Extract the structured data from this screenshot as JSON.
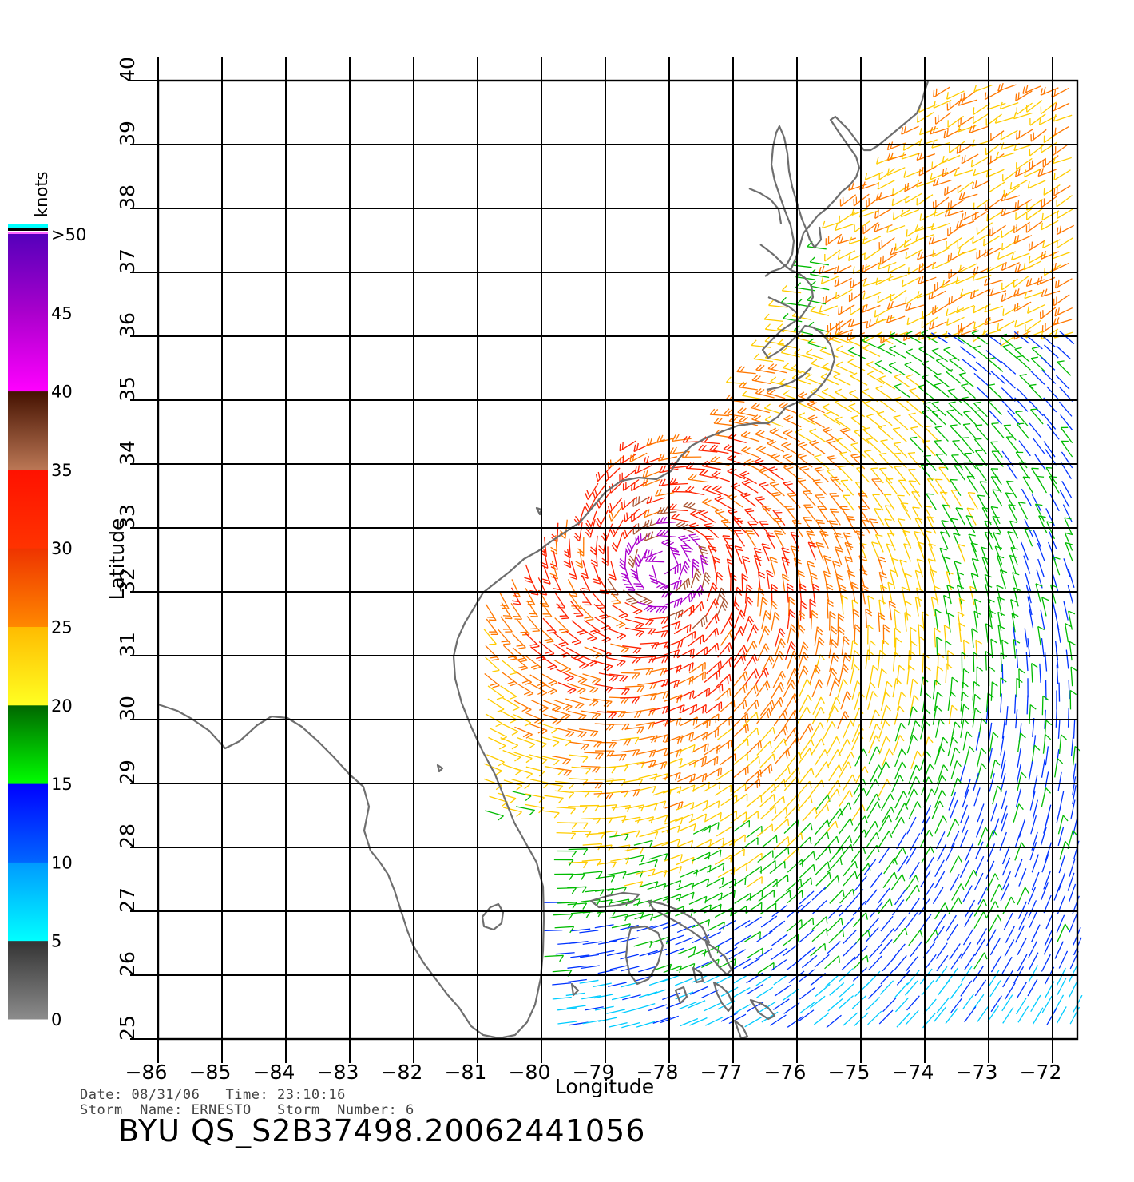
{
  "map": {
    "x_ticks": [
      "−86",
      "−85",
      "−84",
      "−83",
      "−82",
      "−81",
      "−80",
      "−79",
      "−78",
      "−77",
      "−76",
      "−75",
      "−74",
      "−73",
      "−72"
    ],
    "y_ticks": [
      "25",
      "26",
      "27",
      "28",
      "29",
      "30",
      "31",
      "32",
      "33",
      "34",
      "35",
      "36",
      "37",
      "38",
      "39",
      "40"
    ],
    "lon_range": [
      -86,
      -71.6
    ],
    "lat_range": [
      25,
      40
    ],
    "x_label": "Longitude",
    "y_label": "Latitude",
    "grid": true,
    "coastline_color": "#6e6e6e",
    "storm_center": [
      -78.1,
      32.4
    ]
  },
  "colorbar": {
    "unit_label": "knots",
    "tick_labels": [
      "0",
      "5",
      "10",
      "15",
      "20",
      "25",
      "30",
      "35",
      "40",
      "45",
      ">50"
    ],
    "min": 0,
    "max": 50,
    "colors": [
      {
        "from": 0,
        "to": 5,
        "top": "#333333",
        "bottom": "#8c8c8c"
      },
      {
        "from": 5,
        "to": 10,
        "top": "#0099ff",
        "bottom": "#00ffff"
      },
      {
        "from": 10,
        "to": 15,
        "top": "#0000ff",
        "bottom": "#0066ff"
      },
      {
        "from": 15,
        "to": 20,
        "top": "#006600",
        "bottom": "#00ff00"
      },
      {
        "from": 20,
        "to": 25,
        "top": "#ffbb00",
        "bottom": "#ffff22"
      },
      {
        "from": 25,
        "to": 30,
        "top": "#ee3300",
        "bottom": "#ff8800"
      },
      {
        "from": 30,
        "to": 35,
        "top": "#ff1100",
        "bottom": "#ff3300"
      },
      {
        "from": 35,
        "to": 40,
        "top": "#441100",
        "bottom": "#bb7755"
      },
      {
        "from": 40,
        "to": 45,
        "top": "#aa00cc",
        "bottom": "#ff00ff"
      },
      {
        "from": 45,
        "to": 50,
        "top": "#5500bb",
        "bottom": "#aa00cc"
      }
    ]
  },
  "info": {
    "date_label": "Date:",
    "date": "08/31/06",
    "time_label": "Time:",
    "time": "23:10:16",
    "storm_name_label": "Storm  Name:",
    "storm_name": "ERNESTO",
    "storm_number_label": "Storm  Number:",
    "storm_number": "6"
  },
  "file_id": "BYU  QS_S2B37498.20062441056"
}
